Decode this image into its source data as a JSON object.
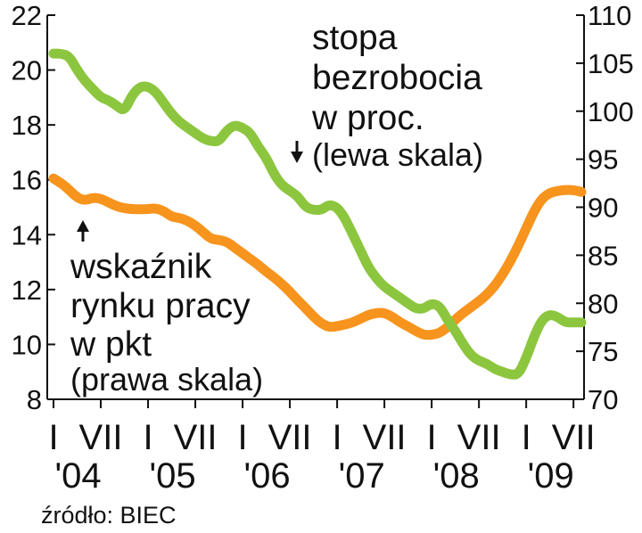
{
  "chart_data": {
    "type": "line",
    "dual_axis": true,
    "grid": false,
    "legend": "inline-annotations",
    "x": [
      "2004-01",
      "2004-02",
      "2004-03",
      "2004-04",
      "2004-05",
      "2004-06",
      "2004-07",
      "2004-08",
      "2004-09",
      "2004-10",
      "2004-11",
      "2004-12",
      "2005-01",
      "2005-02",
      "2005-03",
      "2005-04",
      "2005-05",
      "2005-06",
      "2005-07",
      "2005-08",
      "2005-09",
      "2005-10",
      "2005-11",
      "2005-12",
      "2006-01",
      "2006-02",
      "2006-03",
      "2006-04",
      "2006-05",
      "2006-06",
      "2006-07",
      "2006-08",
      "2006-09",
      "2006-10",
      "2006-11",
      "2006-12",
      "2007-01",
      "2007-02",
      "2007-03",
      "2007-04",
      "2007-05",
      "2007-06",
      "2007-07",
      "2007-08",
      "2007-09",
      "2007-10",
      "2007-11",
      "2007-12",
      "2008-01",
      "2008-02",
      "2008-03",
      "2008-04",
      "2008-05",
      "2008-06",
      "2008-07",
      "2008-08",
      "2008-09",
      "2008-10",
      "2008-11",
      "2008-12",
      "2009-01",
      "2009-02",
      "2009-03",
      "2009-04",
      "2009-05",
      "2009-06",
      "2009-07",
      "2009-08"
    ],
    "series": [
      {
        "name": "stopa bezrobocia w proc.",
        "axis": "left",
        "color": "#8cc63f",
        "values": [
          20.6,
          20.6,
          20.5,
          20.0,
          19.6,
          19.3,
          19.0,
          18.9,
          18.7,
          18.5,
          19.1,
          19.4,
          19.4,
          19.2,
          18.8,
          18.4,
          18.1,
          17.9,
          17.7,
          17.5,
          17.4,
          17.4,
          17.8,
          18.0,
          17.9,
          17.7,
          17.2,
          16.8,
          16.2,
          15.8,
          15.6,
          15.4,
          15.0,
          14.9,
          14.9,
          15.1,
          15.0,
          14.6,
          14.0,
          13.4,
          12.8,
          12.4,
          12.1,
          11.9,
          11.7,
          11.5,
          11.3,
          11.3,
          11.5,
          11.4,
          10.9,
          10.5,
          10.0,
          9.6,
          9.4,
          9.3,
          9.1,
          9.0,
          8.9,
          8.9,
          9.5,
          10.3,
          10.9,
          11.1,
          11.0,
          10.8,
          10.8,
          10.8
        ]
      },
      {
        "name": "wskaźnik rynku pracy w pkt",
        "axis": "right",
        "color": "#f7941d",
        "values": [
          93.0,
          92.5,
          91.8,
          91.0,
          90.7,
          91.0,
          90.9,
          90.5,
          90.1,
          89.9,
          89.8,
          89.8,
          89.8,
          89.9,
          89.6,
          89.0,
          88.9,
          88.6,
          88.1,
          87.4,
          86.7,
          86.6,
          86.4,
          85.8,
          85.2,
          84.6,
          84.0,
          83.3,
          82.7,
          82.0,
          81.2,
          80.3,
          79.5,
          78.6,
          77.9,
          77.5,
          77.6,
          77.8,
          78.0,
          78.4,
          78.8,
          79.0,
          79.0,
          78.6,
          78.0,
          77.6,
          77.1,
          76.7,
          76.7,
          76.9,
          77.5,
          78.3,
          79.0,
          79.6,
          80.2,
          80.9,
          81.8,
          83.0,
          84.4,
          86.0,
          87.8,
          89.6,
          90.9,
          91.5,
          91.7,
          91.8,
          91.8,
          91.6
        ]
      }
    ],
    "y_left": {
      "min": 8,
      "max": 22,
      "ticks": [
        8,
        10,
        12,
        14,
        16,
        18,
        20,
        22
      ]
    },
    "y_right": {
      "min": 70,
      "max": 110,
      "ticks": [
        70,
        75,
        80,
        85,
        90,
        95,
        100,
        105,
        110
      ]
    },
    "x_month_labels": [
      "I",
      "VII",
      "I",
      "VII",
      "I",
      "VII",
      "I",
      "VII",
      "I",
      "VII",
      "I",
      "VII"
    ],
    "x_year_labels": [
      "'04",
      "'05",
      "'06",
      "'07",
      "'08",
      "'09"
    ]
  },
  "annotations": {
    "unemployment": {
      "lines": [
        "stopa",
        "bezrobocia",
        "w proc."
      ],
      "scale": "(lewa skala)"
    },
    "labour_index": {
      "lines": [
        "wskaźnik",
        "rynku pracy",
        "w pkt"
      ],
      "scale": "(prawa skala)"
    }
  },
  "source": "źródło: BIEC"
}
